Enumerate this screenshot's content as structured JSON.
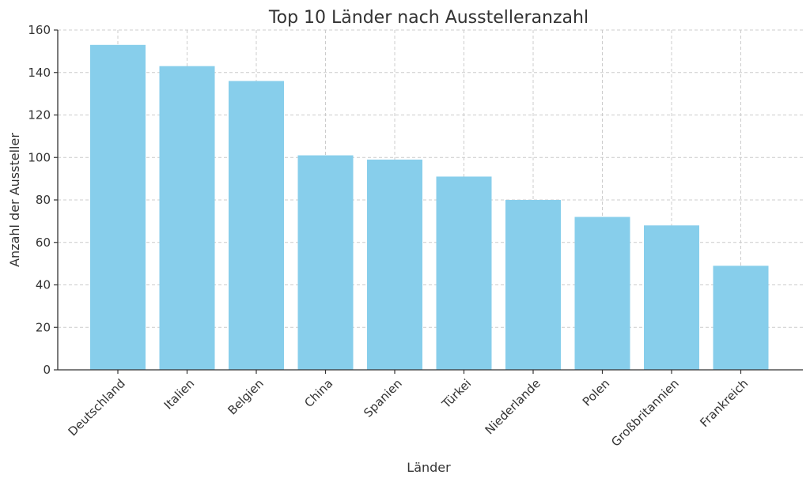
{
  "chart_data": {
    "type": "bar",
    "title": "Top 10 Länder nach Ausstelleranzahl",
    "xlabel": "Länder",
    "ylabel": "Anzahl der Aussteller",
    "categories": [
      "Deutschland",
      "Italien",
      "Belgien",
      "China",
      "Spanien",
      "Türkei",
      "Niederlande",
      "Polen",
      "Großbritannien",
      "Frankreich"
    ],
    "values": [
      153,
      143,
      136,
      101,
      99,
      91,
      80,
      72,
      68,
      49
    ],
    "ylim": [
      0,
      160
    ],
    "yticks": [
      0,
      20,
      40,
      60,
      80,
      100,
      120,
      140,
      160
    ],
    "grid": true,
    "bar_color": "#87CEEB"
  }
}
